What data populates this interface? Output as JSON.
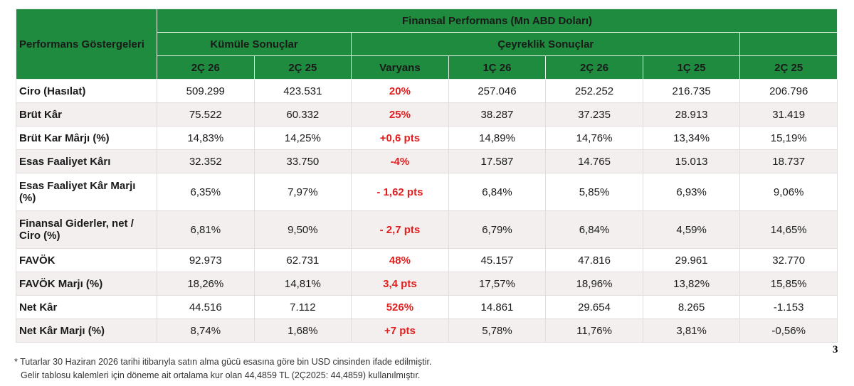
{
  "table": {
    "title": "Finansal Performans (Mn ABD Doları)",
    "corner": "Performans Göstergeleri",
    "groups": [
      "Kümüle Sonuçlar",
      "Çeyreklik Sonuçlar"
    ],
    "columns": [
      "2Ç 26",
      "2Ç 25",
      "Varyans",
      "1Ç 26",
      "2Ç 26",
      "1Ç 25",
      "2Ç 25"
    ],
    "rows": [
      {
        "label": "Ciro (Hasılat)",
        "values": [
          "509.299",
          "423.531",
          "20%",
          "257.046",
          "252.252",
          "216.735",
          "206.796"
        ]
      },
      {
        "label": "Brüt Kâr",
        "values": [
          "75.522",
          "60.332",
          "25%",
          "38.287",
          "37.235",
          "28.913",
          "31.419"
        ]
      },
      {
        "label": "Brüt Kar Mârjı (%)",
        "values": [
          "14,83%",
          "14,25%",
          "+0,6 pts",
          "14,89%",
          "14,76%",
          "13,34%",
          "15,19%"
        ]
      },
      {
        "label": "Esas Faaliyet Kârı",
        "values": [
          "32.352",
          "33.750",
          "-4%",
          "17.587",
          "14.765",
          "15.013",
          "18.737"
        ]
      },
      {
        "label": "Esas Faaliyet Kâr Marjı (%)",
        "values": [
          "6,35%",
          "7,97%",
          "- 1,62 pts",
          "6,84%",
          "5,85%",
          "6,93%",
          "9,06%"
        ]
      },
      {
        "label": "Finansal Giderler, net / Ciro (%)",
        "values": [
          "6,81%",
          "9,50%",
          "- 2,7 pts",
          "6,79%",
          "6,84%",
          "4,59%",
          "14,65%"
        ]
      },
      {
        "label": "FAVÖK",
        "values": [
          "92.973",
          "62.731",
          "48%",
          "45.157",
          "47.816",
          "29.961",
          "32.770"
        ]
      },
      {
        "label": "FAVÖK Marjı (%)",
        "values": [
          "18,26%",
          "14,81%",
          "3,4 pts",
          "17,57%",
          "18,96%",
          "13,82%",
          "15,85%"
        ]
      },
      {
        "label": "Net Kâr",
        "values": [
          "44.516",
          "7.112",
          "526%",
          "14.861",
          "29.654",
          "8.265",
          "-1.153"
        ]
      },
      {
        "label": "Net Kâr Marjı (%)",
        "values": [
          "8,74%",
          "1,68%",
          "+7 pts",
          "5,78%",
          "11,76%",
          "3,81%",
          "-0,56%"
        ]
      }
    ]
  },
  "footnote": [
    "* Tutarlar 30 Haziran 2026 tarihi itibarıyla satın alma gücü esasına göre bin USD cinsinden ifade edilmiştir.",
    "Gelir tablosu kalemleri için döneme ait ortalama kur olan 44,4859 TL (2Ç2025: 44,4859) kullanılmıştır."
  ],
  "page_number": "3"
}
